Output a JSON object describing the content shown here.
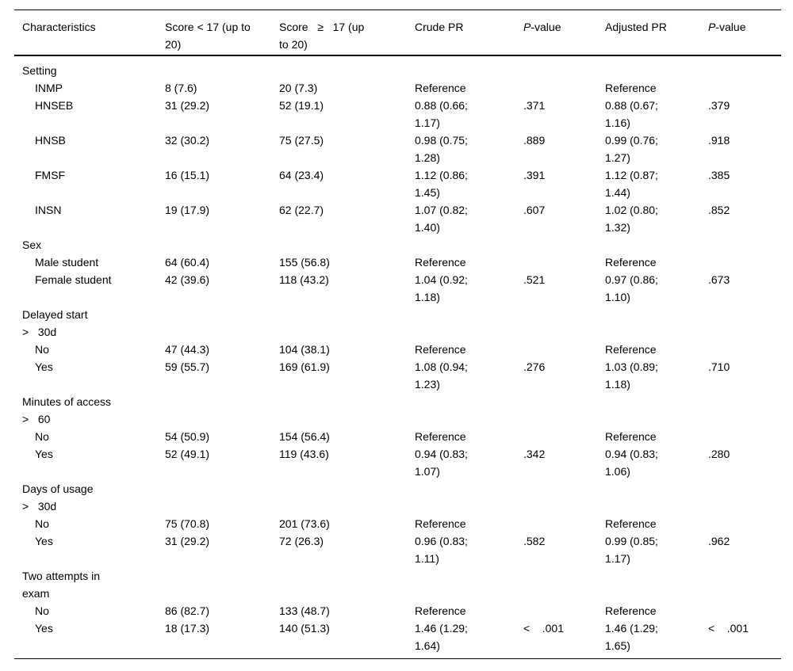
{
  "table": {
    "header": {
      "characteristics": "Characteristics",
      "score_lt": "Score < 17 (up to\n20)",
      "score_ge": "Score   ≥   17 (up\nto 20)",
      "crude_pr": "Crude PR",
      "p_italic": "P",
      "p_rest": "-value",
      "adjusted_pr": "Adjusted PR"
    },
    "rows": [
      {
        "kind": "section",
        "label": "Setting",
        "cells": [
          "",
          "",
          "",
          "",
          "",
          ""
        ]
      },
      {
        "kind": "data",
        "label": "INMP",
        "cells": [
          "8 (7.6)",
          "20 (7.3)",
          "Reference",
          "",
          "Reference",
          ""
        ]
      },
      {
        "kind": "data",
        "label": "HNSEB",
        "cells": [
          "31 (29.2)",
          "52 (19.1)",
          "0.88 (0.66;\n1.17)",
          ".371",
          "0.88 (0.67;\n1.16)",
          ".379"
        ]
      },
      {
        "kind": "data",
        "label": "HNSB",
        "cells": [
          "32 (30.2)",
          "75 (27.5)",
          "0.98 (0.75;\n1.28)",
          ".889",
          "0.99 (0.76;\n1.27)",
          ".918"
        ]
      },
      {
        "kind": "data",
        "label": "FMSF",
        "cells": [
          "16 (15.1)",
          "64 (23.4)",
          "1.12 (0.86;\n1.45)",
          ".391",
          "1.12 (0.87;\n1.44)",
          ".385"
        ]
      },
      {
        "kind": "data",
        "label": "INSN",
        "cells": [
          "19 (17.9)",
          "62 (22.7)",
          "1.07 (0.82;\n1.40)",
          ".607",
          "1.02 (0.80;\n1.32)",
          ".852"
        ]
      },
      {
        "kind": "section",
        "label": "Sex",
        "cells": [
          "",
          "",
          "",
          "",
          "",
          ""
        ]
      },
      {
        "kind": "data",
        "label": "Male student",
        "cells": [
          "64 (60.4)",
          "155 (56.8)",
          "Reference",
          "",
          "Reference",
          ""
        ]
      },
      {
        "kind": "data",
        "label": "Female student",
        "cells": [
          "42 (39.6)",
          "118 (43.2)",
          "1.04 (0.92;\n1.18)",
          ".521",
          "0.97 (0.86;\n1.10)",
          ".673"
        ]
      },
      {
        "kind": "section",
        "label": "Delayed start\n>   30d",
        "cells": [
          "",
          "",
          "",
          "",
          "",
          ""
        ]
      },
      {
        "kind": "data",
        "label": "No",
        "cells": [
          "47 (44.3)",
          "104 (38.1)",
          "Reference",
          "",
          "Reference",
          ""
        ]
      },
      {
        "kind": "data",
        "label": "Yes",
        "cells": [
          "59 (55.7)",
          "169 (61.9)",
          "1.08 (0.94;\n1.23)",
          ".276",
          "1.03 (0.89;\n1.18)",
          ".710"
        ]
      },
      {
        "kind": "section",
        "label": "Minutes of access\n>   60",
        "cells": [
          "",
          "",
          "",
          "",
          "",
          ""
        ]
      },
      {
        "kind": "data",
        "label": "No",
        "cells": [
          "54 (50.9)",
          "154 (56.4)",
          "Reference",
          "",
          "Reference",
          ""
        ]
      },
      {
        "kind": "data",
        "label": "Yes",
        "cells": [
          "52 (49.1)",
          "119 (43.6)",
          "0.94 (0.83;\n1.07)",
          ".342",
          "0.94 (0.83;\n1.06)",
          ".280"
        ]
      },
      {
        "kind": "section",
        "label": "Days of usage\n>   30d",
        "cells": [
          "",
          "",
          "",
          "",
          "",
          ""
        ]
      },
      {
        "kind": "data",
        "label": "No",
        "cells": [
          "75 (70.8)",
          "201 (73.6)",
          "Reference",
          "",
          "Reference",
          ""
        ]
      },
      {
        "kind": "data",
        "label": "Yes",
        "cells": [
          "31 (29.2)",
          "72 (26.3)",
          "0.96 (0.83;\n1.11)",
          ".582",
          "0.99 (0.85;\n1.17)",
          ".962"
        ]
      },
      {
        "kind": "section",
        "label": "Two attempts in\nexam",
        "cells": [
          "",
          "",
          "",
          "",
          "",
          ""
        ]
      },
      {
        "kind": "data",
        "label": "No",
        "cells": [
          "86 (82.7)",
          "133 (48.7)",
          "Reference",
          "",
          "Reference",
          ""
        ]
      },
      {
        "kind": "data",
        "label": "Yes",
        "cells": [
          "18 (17.3)",
          "140 (51.3)",
          "1.46 (1.29;\n1.64)",
          "<    .001",
          "1.46 (1.29;\n1.65)",
          "<    .001"
        ]
      }
    ]
  }
}
